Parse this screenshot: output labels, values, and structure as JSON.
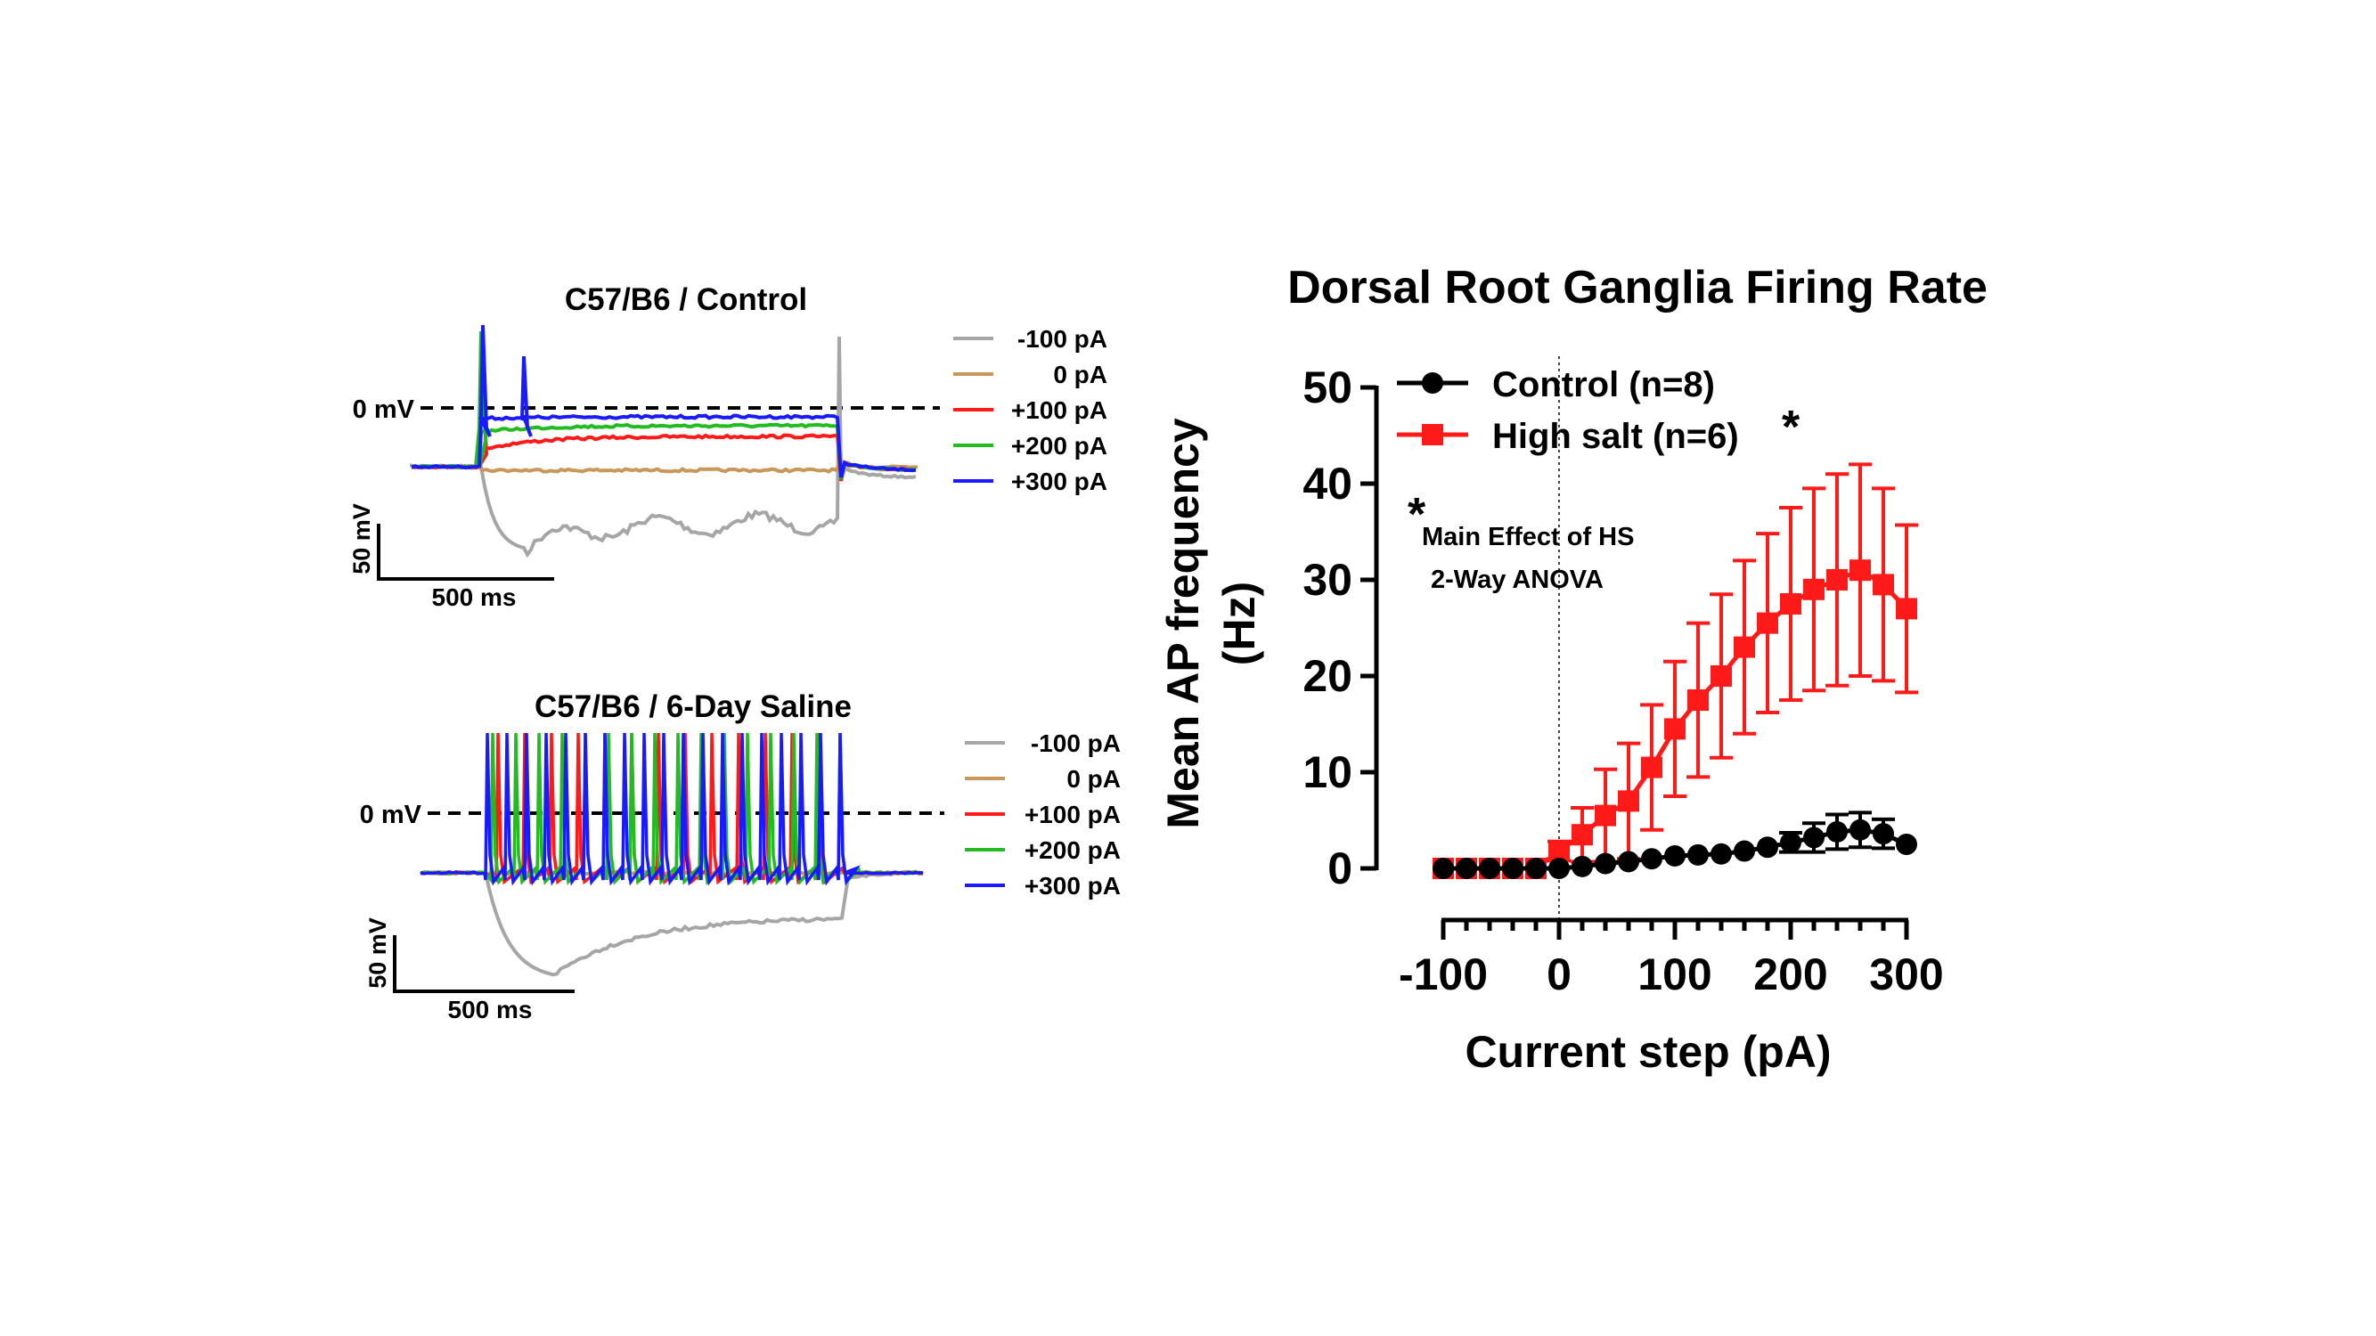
{
  "traces": [
    {
      "title": "C57/B6 / Control",
      "zero_label": "0 mV",
      "scale_voltage": "50 mV",
      "scale_time": "500 ms",
      "legend": [
        {
          "label": "-100 pA",
          "color": "#a6a6a6"
        },
        {
          "label": "0 pA",
          "color": "#c8975a"
        },
        {
          "label": "+100 pA",
          "color": "#ff1a1a"
        },
        {
          "label": "+200 pA",
          "color": "#22bb22"
        },
        {
          "label": "+300 pA",
          "color": "#1a1aff"
        }
      ]
    },
    {
      "title": "C57/B6 / 6-Day Saline",
      "zero_label": "0 mV",
      "scale_voltage": "50 mV",
      "scale_time": "500 ms",
      "legend": [
        {
          "label": "-100 pA",
          "color": "#a6a6a6"
        },
        {
          "label": "0 pA",
          "color": "#c8975a"
        },
        {
          "label": "+100 pA",
          "color": "#ff1a1a"
        },
        {
          "label": "+200 pA",
          "color": "#22bb22"
        },
        {
          "label": "+300 pA",
          "color": "#1a1aff"
        }
      ]
    }
  ],
  "chart_data": {
    "type": "line",
    "title": "Dorsal Root Ganglia Firing Rate",
    "xlabel": "Current step (pA)",
    "ylabel_line1": "Mean AP frequency",
    "ylabel_line2": "(Hz)",
    "xlim": [
      -100,
      300
    ],
    "ylim": [
      0,
      50
    ],
    "xticks": [
      -100,
      0,
      100,
      200,
      300
    ],
    "yticks": [
      0,
      10,
      20,
      30,
      40,
      50
    ],
    "x": [
      -100,
      -80,
      -60,
      -40,
      -20,
      0,
      20,
      40,
      60,
      80,
      100,
      120,
      140,
      160,
      180,
      200,
      220,
      240,
      260,
      280,
      300
    ],
    "series": [
      {
        "name": "Control (n=8)",
        "color": "#000000",
        "marker": "circle",
        "values": [
          0,
          0,
          0,
          0,
          0,
          0,
          0.2,
          0.5,
          0.7,
          1.0,
          1.3,
          1.4,
          1.5,
          1.8,
          2.2,
          2.7,
          3.2,
          3.8,
          4.0,
          3.6,
          2.5
        ],
        "errors": [
          0,
          0,
          0,
          0,
          0,
          0,
          0,
          0,
          0,
          0,
          0,
          0,
          0,
          0,
          0,
          1.0,
          1.5,
          1.8,
          1.8,
          1.5,
          0
        ]
      },
      {
        "name": "High salt (n=6)",
        "color": "#ff1a1a",
        "marker": "square",
        "values": [
          0,
          0,
          0,
          0,
          0,
          1.8,
          3.5,
          5.5,
          7.0,
          10.5,
          14.5,
          17.5,
          20.0,
          23.0,
          25.5,
          27.5,
          29.0,
          30.0,
          31.0,
          29.5,
          27.0
        ],
        "errors": [
          0,
          0,
          0,
          0,
          0,
          1.0,
          2.8,
          4.8,
          6.0,
          6.5,
          7.0,
          8.0,
          8.5,
          9.0,
          9.3,
          10.0,
          10.5,
          11.0,
          11.0,
          10.0,
          8.7
        ]
      }
    ],
    "significance_marker": "*",
    "annotation_line1": "Main Effect of HS",
    "annotation_line2": "2-Way ANOVA"
  }
}
